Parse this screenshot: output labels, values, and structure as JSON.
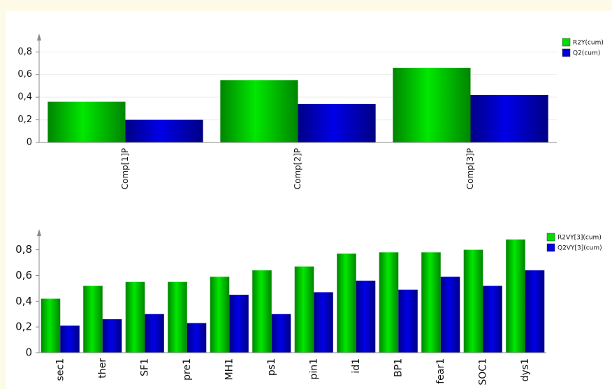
{
  "chart_data": [
    {
      "type": "bar",
      "categories": [
        "Comp[1]P",
        "Comp[2]P",
        "Comp[3]P"
      ],
      "series": [
        {
          "name": "R2Y(cum)",
          "color": "#00dd00",
          "values": [
            0.36,
            0.55,
            0.66
          ]
        },
        {
          "name": "Q2(cum)",
          "color": "#0000dd",
          "values": [
            0.2,
            0.34,
            0.42
          ]
        }
      ],
      "ylim": [
        0,
        0.95
      ],
      "yticks": [
        0,
        {
          "value": 0.2,
          "label": "0,2"
        },
        {
          "value": 0.4,
          "label": "0,4"
        },
        {
          "value": 0.6,
          "label": "0,6"
        },
        {
          "value": 0.8,
          "label": "0,8"
        }
      ],
      "grid": true,
      "legend": "top-right"
    },
    {
      "type": "bar",
      "categories": [
        "sec1",
        "ther",
        "SF1",
        "pre1",
        "MH1",
        "ps1",
        "pin1",
        "id1",
        "BP1",
        "fear1",
        "SOC1",
        "dys1"
      ],
      "series": [
        {
          "name": "R2VY[3](cum)",
          "color": "#00dd00",
          "values": [
            0.42,
            0.52,
            0.55,
            0.55,
            0.59,
            0.64,
            0.67,
            0.77,
            0.78,
            0.78,
            0.8,
            0.88
          ]
        },
        {
          "name": "Q2VY[3](cum)",
          "color": "#0000dd",
          "values": [
            0.21,
            0.26,
            0.3,
            0.23,
            0.45,
            0.3,
            0.47,
            0.56,
            0.49,
            0.59,
            0.52,
            0.64
          ]
        }
      ],
      "ylim": [
        0,
        0.95
      ],
      "yticks": [
        0,
        {
          "value": 0.2,
          "label": "0,2"
        },
        {
          "value": 0.4,
          "label": "0,4"
        },
        {
          "value": 0.6,
          "label": "0,6"
        },
        {
          "value": 0.8,
          "label": "0,8"
        }
      ],
      "grid": false,
      "legend": "top-right"
    }
  ]
}
